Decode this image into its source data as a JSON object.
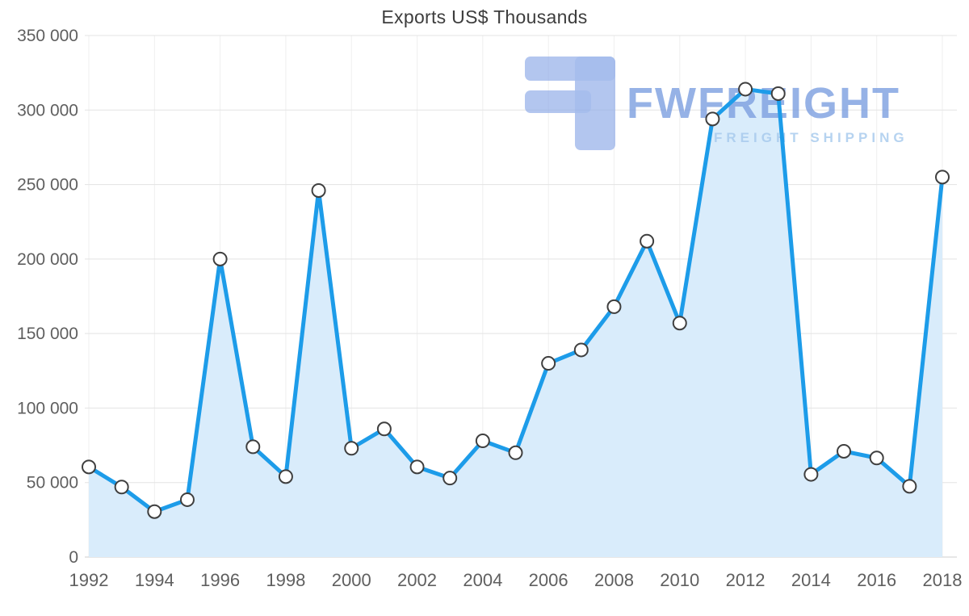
{
  "chart_data": {
    "type": "line",
    "title": "Exports US$ Thousands",
    "xlabel": "",
    "ylabel": "",
    "x": [
      1992,
      1993,
      1994,
      1995,
      1996,
      1997,
      1998,
      1999,
      2000,
      2001,
      2002,
      2003,
      2004,
      2005,
      2006,
      2007,
      2008,
      2009,
      2010,
      2011,
      2012,
      2013,
      2014,
      2015,
      2016,
      2017,
      2018
    ],
    "series": [
      {
        "name": "Exports US$ Thousands",
        "values": [
          60500,
          47000,
          30500,
          38500,
          200000,
          74000,
          54000,
          246000,
          73000,
          86000,
          60500,
          53000,
          78000,
          70000,
          130000,
          139000,
          168000,
          212000,
          157000,
          294000,
          314000,
          311000,
          55500,
          71000,
          66500,
          47500,
          255000
        ]
      }
    ],
    "ylim": [
      0,
      350000
    ],
    "yticks": [
      0,
      50000,
      100000,
      150000,
      200000,
      250000,
      300000,
      350000
    ],
    "ytick_format": "space-thousands",
    "xticks": [
      1992,
      1994,
      1996,
      1998,
      2000,
      2002,
      2004,
      2006,
      2008,
      2010,
      2012,
      2014,
      2016,
      2018
    ],
    "grid": true,
    "area_fill": true,
    "markers": true,
    "legend_position": "none"
  },
  "watermark": {
    "brand": "FWFREIGHT",
    "tagline": "FREIGHT SHIPPING",
    "icon": "fwfreight-logo-icon"
  },
  "colors": {
    "line": "#1d9ce9",
    "area": "#d9ecfb",
    "marker_fill": "#ffffff",
    "marker_stroke": "#3f3f3f",
    "grid_horizontal": "#e3e3e3",
    "grid_vertical": "#efefef",
    "baseline": "#cfcfcf",
    "axis_text": "#5f5f5f",
    "title_text": "#3d3d3d",
    "watermark_primary": "#7d9fe0",
    "watermark_secondary": "#a5c9ed",
    "watermark_icon": "#8fabe8"
  }
}
